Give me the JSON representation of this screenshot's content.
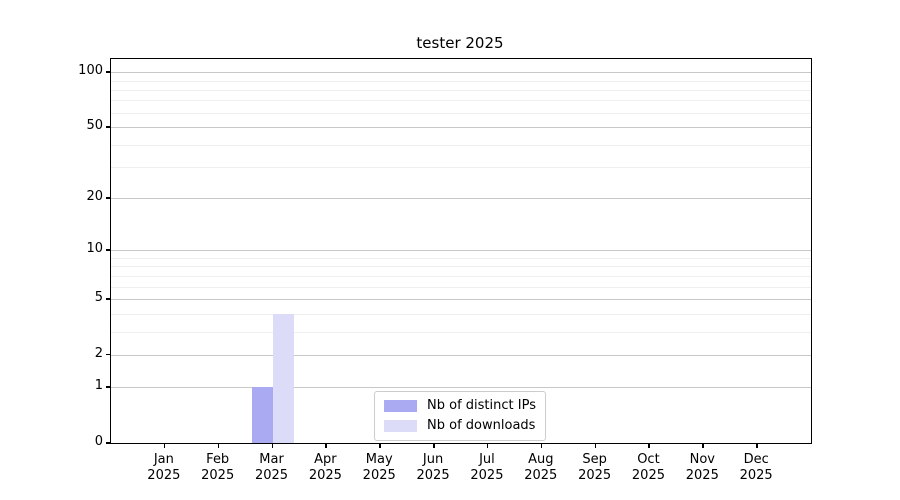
{
  "chart_data": {
    "type": "bar",
    "title": "tester 2025",
    "xlabel": "",
    "ylabel": "",
    "y_scale": "log1p",
    "ylim": [
      0,
      118
    ],
    "y_ticks": [
      0,
      1,
      2,
      5,
      10,
      20,
      50,
      100
    ],
    "y_minor_ticks": [
      3,
      4,
      6,
      7,
      8,
      9,
      30,
      40,
      60,
      70,
      80,
      90
    ],
    "grid": "horizontal",
    "legend_position": "lower center",
    "categories": [
      {
        "label": "Jan",
        "sub": "2025"
      },
      {
        "label": "Feb",
        "sub": "2025"
      },
      {
        "label": "Mar",
        "sub": "2025"
      },
      {
        "label": "Apr",
        "sub": "2025"
      },
      {
        "label": "May",
        "sub": "2025"
      },
      {
        "label": "Jun",
        "sub": "2025"
      },
      {
        "label": "Jul",
        "sub": "2025"
      },
      {
        "label": "Aug",
        "sub": "2025"
      },
      {
        "label": "Sep",
        "sub": "2025"
      },
      {
        "label": "Oct",
        "sub": "2025"
      },
      {
        "label": "Nov",
        "sub": "2025"
      },
      {
        "label": "Dec",
        "sub": "2025"
      }
    ],
    "series": [
      {
        "name": "Nb of distinct IPs",
        "color": "#aaaaf2",
        "values": [
          0,
          0,
          1,
          0,
          0,
          0,
          0,
          0,
          0,
          0,
          0,
          0
        ]
      },
      {
        "name": "Nb of downloads",
        "color": "#dcdcf8",
        "values": [
          0,
          0,
          4,
          0,
          0,
          0,
          0,
          0,
          0,
          0,
          0,
          0
        ]
      }
    ]
  },
  "colors": {
    "background": "#ffffff",
    "axis": "#000000",
    "grid_major": "#c8c8c8",
    "grid_minor": "#efefef",
    "legend_border": "#cccccc",
    "text": "#000000"
  }
}
